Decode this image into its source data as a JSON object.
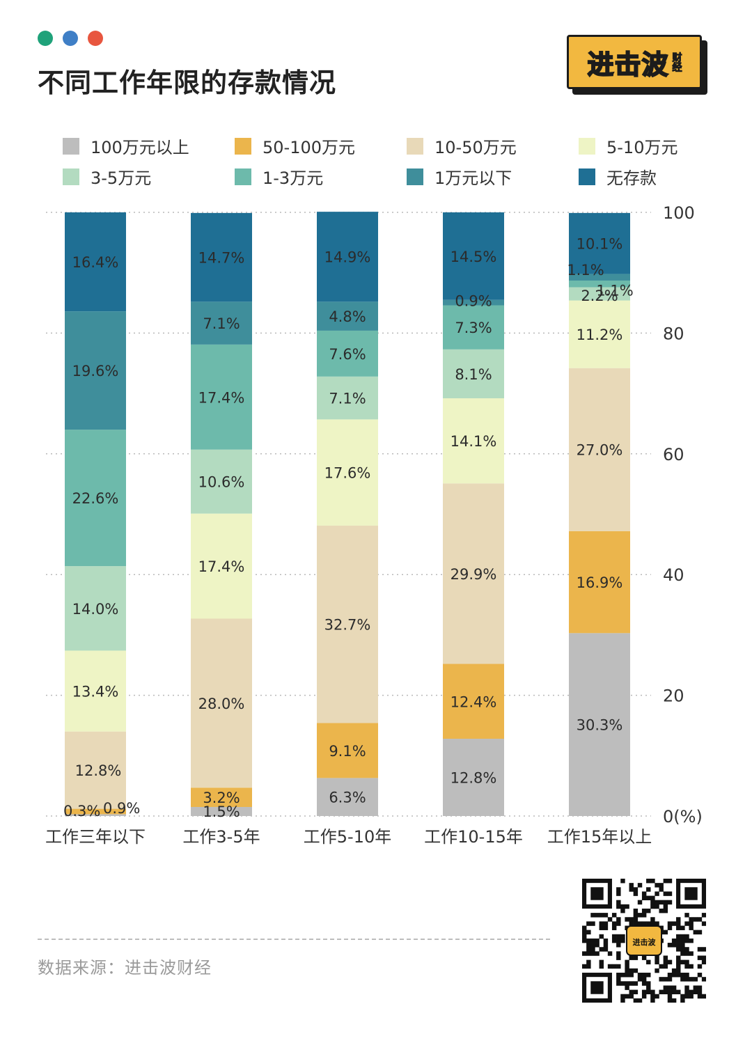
{
  "header": {
    "title": "不同工作年限的存款情况",
    "dots": [
      "#1fa27a",
      "#3f7fc6",
      "#e8563f"
    ]
  },
  "logo": {
    "main": "进击波",
    "sub": "财经",
    "color": "#f2b840"
  },
  "qr": {
    "badge": "进击波"
  },
  "footer": {
    "source": "数据来源：进击波财经"
  },
  "chart_data": {
    "type": "bar",
    "stacked": true,
    "categories": [
      "工作三年以下",
      "工作3-5年",
      "工作5-10年",
      "工作10-15年",
      "工作15年以上"
    ],
    "series": [
      {
        "name": "100万元以上",
        "color": "#bdbdbd",
        "values": [
          0.3,
          1.5,
          6.3,
          12.8,
          30.3
        ]
      },
      {
        "name": "50-100万元",
        "color": "#ebb54c",
        "values": [
          0.9,
          3.2,
          9.1,
          12.4,
          16.9
        ]
      },
      {
        "name": "10-50万元",
        "color": "#e8d9b8",
        "values": [
          12.8,
          28.0,
          32.7,
          29.9,
          27.0
        ]
      },
      {
        "name": "5-10万元",
        "color": "#eef4c5",
        "values": [
          13.4,
          17.4,
          17.6,
          14.1,
          11.2
        ]
      },
      {
        "name": "3-5万元",
        "color": "#b3dbc0",
        "values": [
          14.0,
          10.6,
          7.1,
          8.1,
          2.2
        ]
      },
      {
        "name": "1-3万元",
        "color": "#6dbaab",
        "values": [
          22.6,
          17.4,
          7.6,
          7.3,
          1.1
        ]
      },
      {
        "name": "1万元以下",
        "color": "#3f8e9b",
        "values": [
          19.6,
          7.1,
          4.8,
          0.9,
          1.1
        ]
      },
      {
        "name": "无存款",
        "color": "#1f6f94",
        "values": [
          16.4,
          14.7,
          14.9,
          14.5,
          10.1
        ]
      }
    ],
    "data_labels": [
      [
        "0.3%",
        "1.5%",
        "6.3%",
        "12.8%",
        "30.3%"
      ],
      [
        "0.9%",
        "3.2%",
        "9.1%",
        "12.4%",
        "16.9%"
      ],
      [
        "12.8%",
        "28.0%",
        "32.7%",
        "29.9%",
        "27.0%"
      ],
      [
        "13.4%",
        "17.4%",
        "17.6%",
        "14.1%",
        "11.2%"
      ],
      [
        "14.0%",
        "10.6%",
        "7.1%",
        "8.1%",
        "2.2%"
      ],
      [
        "22.6%",
        "17.4%",
        "7.6%",
        "7.3%",
        "1.1%"
      ],
      [
        "19.6%",
        "7.1%",
        "4.8%",
        "0.9%",
        "1.1%"
      ],
      [
        "16.4%",
        "14.7%",
        "14.9%",
        "14.5%",
        "10.1%"
      ]
    ],
    "y_ticks": [
      "0(%)",
      "20",
      "40",
      "60",
      "80",
      "100"
    ],
    "ylim": [
      0,
      100
    ],
    "y_axis_side": "right",
    "grid": "dotted",
    "legend_position": "top"
  }
}
